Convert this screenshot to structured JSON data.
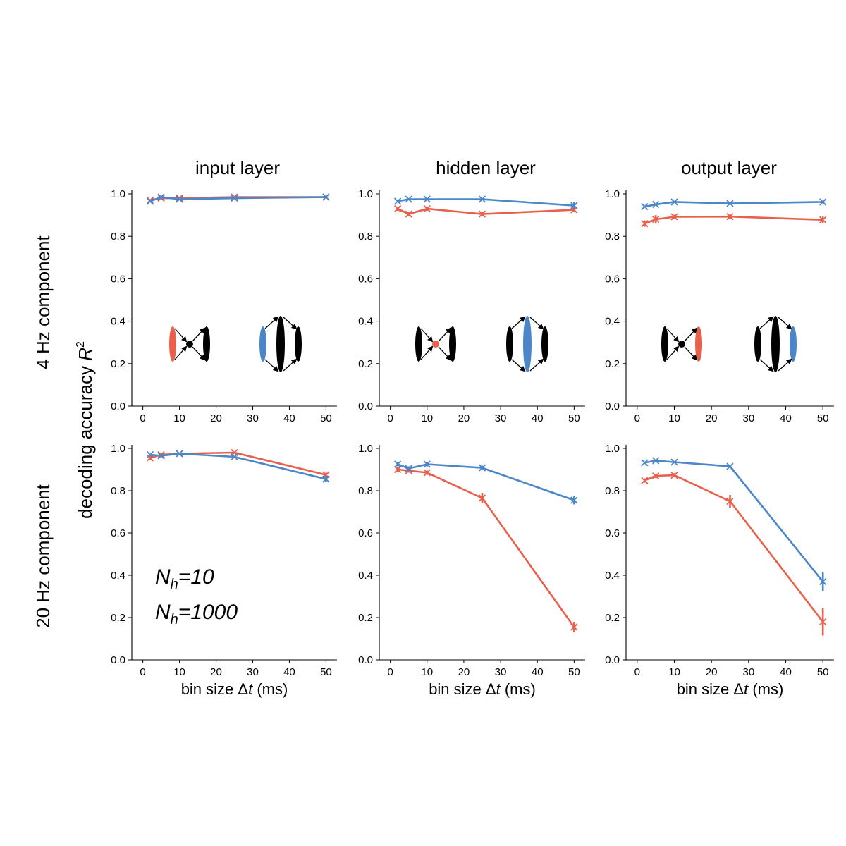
{
  "colors": {
    "nh10": "#e8604c",
    "nh1000": "#4a86c8",
    "axis": "#000000"
  },
  "column_titles": [
    "input layer",
    "hidden layer",
    "output layer"
  ],
  "row_labels": [
    "4 Hz component",
    "20 Hz component"
  ],
  "ylabel": {
    "text": "decoding accuracy ",
    "symbol": "R",
    "sup": "2"
  },
  "xlabel": {
    "prefix": "bin size Δ",
    "var": "t",
    "suffix": " (ms)"
  },
  "legend": [
    {
      "base": "N",
      "sub": "h",
      "rest": "=10",
      "color": "#e8604c"
    },
    {
      "base": "N",
      "sub": "h",
      "rest": "=1000",
      "color": "#4a86c8"
    }
  ],
  "x_ticks": [
    0,
    10,
    20,
    30,
    40,
    50
  ],
  "y_ticks": [
    "0.0",
    "0.2",
    "0.4",
    "0.6",
    "0.8",
    "1.0"
  ],
  "chart_data": [
    {
      "type": "line",
      "row": "4 Hz component",
      "title": "input layer",
      "x": [
        2,
        5,
        10,
        25,
        50
      ],
      "xlim": [
        -3,
        53
      ],
      "ylim": [
        0,
        1
      ],
      "series": [
        {
          "name": "N_h=10",
          "values": [
            0.97,
            0.98,
            0.98,
            0.985,
            0.985
          ],
          "err": [
            0.005,
            0.005,
            0.005,
            0.005,
            0.005
          ]
        },
        {
          "name": "N_h=1000",
          "values": [
            0.965,
            0.985,
            0.975,
            0.98,
            0.985
          ],
          "err": [
            0.005,
            0.005,
            0.005,
            0.005,
            0.005
          ]
        }
      ]
    },
    {
      "type": "line",
      "row": "4 Hz component",
      "title": "hidden layer",
      "x": [
        2,
        5,
        10,
        25,
        50
      ],
      "xlim": [
        -3,
        53
      ],
      "ylim": [
        0,
        1
      ],
      "series": [
        {
          "name": "N_h=10",
          "values": [
            0.93,
            0.905,
            0.93,
            0.905,
            0.925
          ],
          "err": [
            0.01,
            0.01,
            0.01,
            0.01,
            0.01
          ]
        },
        {
          "name": "N_h=1000",
          "values": [
            0.965,
            0.975,
            0.975,
            0.975,
            0.945
          ],
          "err": [
            0.005,
            0.005,
            0.005,
            0.005,
            0.015
          ]
        }
      ]
    },
    {
      "type": "line",
      "row": "4 Hz component",
      "title": "output layer",
      "x": [
        2,
        5,
        10,
        25,
        50
      ],
      "xlim": [
        -3,
        53
      ],
      "ylim": [
        0,
        1
      ],
      "series": [
        {
          "name": "N_h=10",
          "values": [
            0.86,
            0.88,
            0.892,
            0.893,
            0.878
          ],
          "err": [
            0.015,
            0.02,
            0.01,
            0.01,
            0.015
          ]
        },
        {
          "name": "N_h=1000",
          "values": [
            0.94,
            0.95,
            0.962,
            0.955,
            0.962
          ],
          "err": [
            0.005,
            0.005,
            0.005,
            0.005,
            0.005
          ]
        }
      ]
    },
    {
      "type": "line",
      "row": "20 Hz component",
      "title": "input layer",
      "x": [
        2,
        5,
        10,
        25,
        50
      ],
      "xlim": [
        -3,
        53
      ],
      "ylim": [
        0,
        1
      ],
      "series": [
        {
          "name": "N_h=10",
          "values": [
            0.955,
            0.97,
            0.975,
            0.98,
            0.875
          ],
          "err": [
            0.01,
            0.01,
            0.005,
            0.005,
            0.01
          ]
        },
        {
          "name": "N_h=1000",
          "values": [
            0.97,
            0.965,
            0.975,
            0.96,
            0.855
          ],
          "err": [
            0.005,
            0.005,
            0.005,
            0.005,
            0.015
          ]
        }
      ]
    },
    {
      "type": "line",
      "row": "20 Hz component",
      "title": "hidden layer",
      "x": [
        2,
        5,
        10,
        25,
        50
      ],
      "xlim": [
        -3,
        53
      ],
      "ylim": [
        0,
        1
      ],
      "series": [
        {
          "name": "N_h=10",
          "values": [
            0.9,
            0.895,
            0.885,
            0.765,
            0.155
          ],
          "err": [
            0.01,
            0.01,
            0.01,
            0.025,
            0.025
          ]
        },
        {
          "name": "N_h=1000",
          "values": [
            0.925,
            0.905,
            0.925,
            0.908,
            0.755
          ],
          "err": [
            0.01,
            0.01,
            0.01,
            0.01,
            0.02
          ]
        }
      ]
    },
    {
      "type": "line",
      "row": "20 Hz component",
      "title": "output layer",
      "x": [
        2,
        5,
        10,
        25,
        50
      ],
      "xlim": [
        -3,
        53
      ],
      "ylim": [
        0,
        1
      ],
      "series": [
        {
          "name": "N_h=10",
          "values": [
            0.848,
            0.87,
            0.873,
            0.75,
            0.18
          ],
          "err": [
            0.01,
            0.01,
            0.01,
            0.03,
            0.065
          ]
        },
        {
          "name": "N_h=1000",
          "values": [
            0.932,
            0.942,
            0.935,
            0.915,
            0.37
          ],
          "err": [
            0.005,
            0.005,
            0.005,
            0.005,
            0.045
          ]
        }
      ]
    }
  ],
  "insets": [
    {
      "layer": "input layer",
      "small_highlight": "left",
      "large_highlight": "left"
    },
    {
      "layer": "hidden layer",
      "small_highlight": "middle",
      "large_highlight": "middle"
    },
    {
      "layer": "output layer",
      "small_highlight": "right",
      "large_highlight": "right"
    }
  ]
}
